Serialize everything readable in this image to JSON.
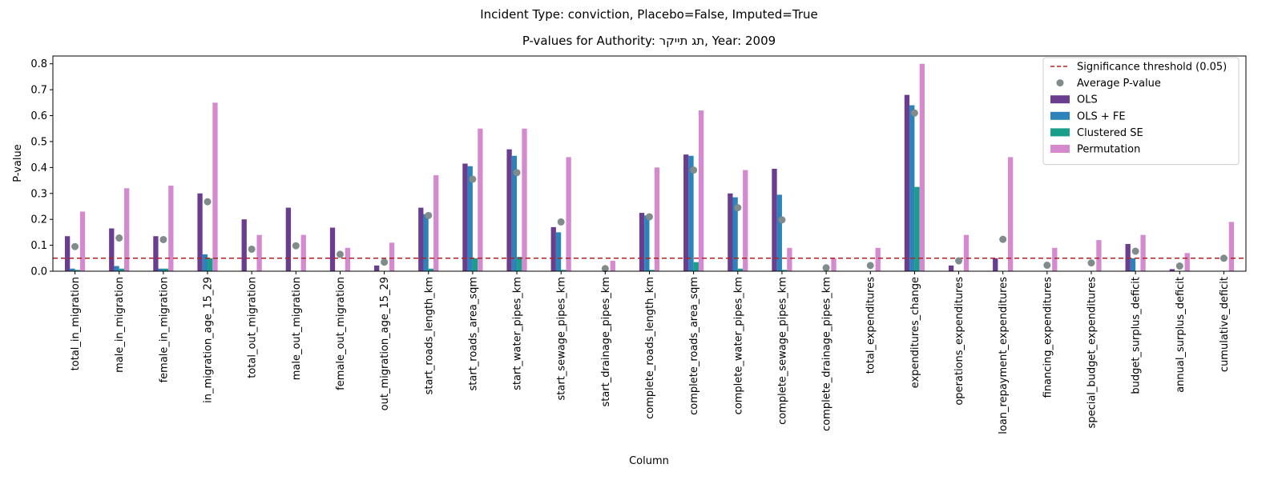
{
  "suptitle": "Incident Type: conviction, Placebo=False, Imputed=True",
  "chart_data": {
    "type": "bar",
    "title": "P-values for Authority: תג תייקר, Year: 2009",
    "xlabel": "Column",
    "ylabel": "P-value",
    "ylim": [
      0,
      0.83
    ],
    "yticks": [
      0.0,
      0.1,
      0.2,
      0.3,
      0.4,
      0.5,
      0.6,
      0.7,
      0.8
    ],
    "ytick_labels": [
      "0.0",
      "0.1",
      "0.2",
      "0.3",
      "0.4",
      "0.5",
      "0.6",
      "0.7",
      "0.8"
    ],
    "grid": false,
    "legend_position": "top-right",
    "threshold": {
      "name": "Significance threshold (0.05)",
      "value": 0.05,
      "color": "#b22222"
    },
    "categories": [
      "total_in_migration",
      "male_in_migration",
      "female_in_migration",
      "in_migration_age_15_29",
      "total_out_migration",
      "male_out_migration",
      "female_out_migration",
      "out_migration_age_15_29",
      "start_roads_length_km",
      "start_roads_area_sqm",
      "start_water_pipes_km",
      "start_sewage_pipes_km",
      "start_drainage_pipes_km",
      "complete_roads_length_km",
      "complete_roads_area_sqm",
      "complete_water_pipes_km",
      "complete_sewage_pipes_km",
      "complete_drainage_pipes_km",
      "total_expenditures",
      "expenditures_change",
      "operations_expenditures",
      "loan_repayment_expenditures",
      "financing_expenditures",
      "special_budget_expenditures",
      "budget_surplus_deficit",
      "annual_surplus_deficit",
      "cumulative_deficit"
    ],
    "series": [
      {
        "name": "OLS",
        "color": "#6a3d8f",
        "values": [
          0.135,
          0.165,
          0.135,
          0.3,
          0.2,
          0.245,
          0.168,
          0.022,
          0.245,
          0.415,
          0.47,
          0.17,
          0.0,
          0.225,
          0.45,
          0.3,
          0.395,
          0.0,
          0.0,
          0.68,
          0.022,
          0.05,
          0.0,
          0.0,
          0.105,
          0.008,
          0.0
        ]
      },
      {
        "name": "OLS + FE",
        "color": "#2b83ba",
        "values": [
          0.01,
          0.02,
          0.01,
          0.065,
          0.0,
          0.0,
          0.0,
          0.0,
          0.22,
          0.405,
          0.445,
          0.15,
          0.0,
          0.215,
          0.445,
          0.285,
          0.295,
          0.0,
          0.0,
          0.64,
          0.0,
          0.0,
          0.0,
          0.0,
          0.05,
          0.0,
          0.0
        ]
      },
      {
        "name": "Clustered SE",
        "color": "#1a9e8a",
        "values": [
          0.005,
          0.01,
          0.01,
          0.05,
          0.0,
          0.0,
          0.0,
          0.0,
          0.01,
          0.05,
          0.055,
          0.005,
          0.0,
          0.005,
          0.035,
          0.01,
          0.005,
          0.0,
          0.0,
          0.325,
          0.0,
          0.0,
          0.0,
          0.0,
          0.0,
          0.0,
          0.0
        ]
      },
      {
        "name": "Permutation",
        "color": "#d58ad0",
        "values": [
          0.23,
          0.32,
          0.33,
          0.65,
          0.14,
          0.14,
          0.09,
          0.11,
          0.37,
          0.55,
          0.55,
          0.44,
          0.04,
          0.4,
          0.62,
          0.39,
          0.09,
          0.05,
          0.09,
          0.8,
          0.14,
          0.44,
          0.09,
          0.12,
          0.14,
          0.07,
          0.19
        ]
      }
    ],
    "average": {
      "name": "Average P-value",
      "color": "#808b8b",
      "values": [
        0.095,
        0.128,
        0.122,
        0.268,
        0.085,
        0.098,
        0.065,
        0.035,
        0.215,
        0.355,
        0.38,
        0.19,
        0.01,
        0.21,
        0.39,
        0.245,
        0.198,
        0.013,
        0.022,
        0.61,
        0.04,
        0.123,
        0.023,
        0.032,
        0.077,
        0.02,
        0.05
      ]
    }
  }
}
